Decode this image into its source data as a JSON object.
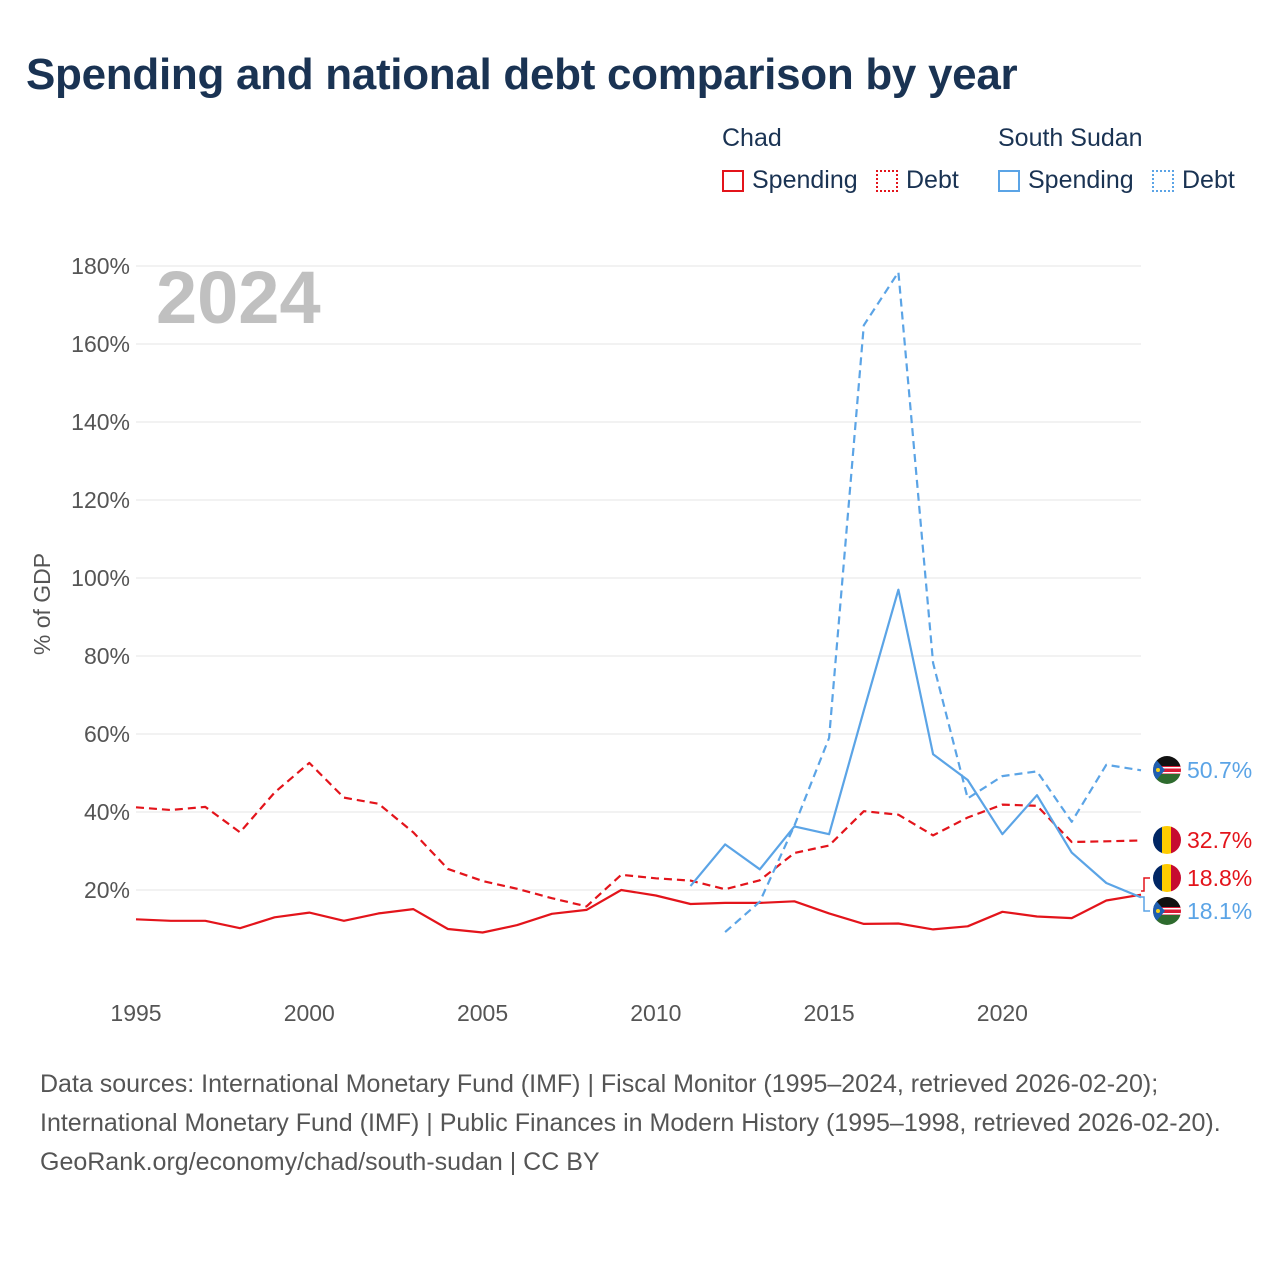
{
  "title": "Spending and national debt comparison by year",
  "colors": {
    "chad": "#e3141b",
    "south_sudan": "#5ba4e6",
    "title": "#1a3353",
    "year_watermark": "#c0c0c0"
  },
  "legend": {
    "groups": [
      {
        "name": "Chad",
        "items": [
          {
            "label": "Spending",
            "style": "solid"
          },
          {
            "label": "Debt",
            "style": "dotted"
          }
        ]
      },
      {
        "name": "South Sudan",
        "items": [
          {
            "label": "Spending",
            "style": "solid"
          },
          {
            "label": "Debt",
            "style": "dotted"
          }
        ]
      }
    ]
  },
  "chart_data": {
    "type": "line",
    "year_label": "2024",
    "ylabel": "% of GDP",
    "xlabel": "",
    "xlim": [
      1995,
      2024
    ],
    "ylim": [
      0,
      180
    ],
    "y_ticks": [
      20,
      40,
      60,
      80,
      100,
      120,
      140,
      160,
      180
    ],
    "y_tick_labels": [
      "20%",
      "40%",
      "60%",
      "80%",
      "100%",
      "120%",
      "140%",
      "160%",
      "180%"
    ],
    "x_ticks": [
      1995,
      2000,
      2005,
      2010,
      2015,
      2020
    ],
    "x_tick_labels": [
      "1995",
      "2000",
      "2005",
      "2010",
      "2015",
      "2020"
    ],
    "grid": true,
    "series": [
      {
        "name": "Chad Spending",
        "country": "chad",
        "style": "solid",
        "x": [
          1995,
          1996,
          1997,
          1998,
          1999,
          2000,
          2001,
          2002,
          2003,
          2004,
          2005,
          2006,
          2007,
          2008,
          2009,
          2010,
          2011,
          2012,
          2013,
          2014,
          2015,
          2016,
          2017,
          2018,
          2019,
          2020,
          2021,
          2022,
          2023,
          2024
        ],
        "values": [
          12.5,
          12.1,
          12.1,
          10.2,
          13,
          14.2,
          12.1,
          14,
          15.1,
          10,
          9.1,
          11,
          13.9,
          14.9,
          20,
          18.6,
          16.4,
          16.7,
          16.7,
          17.1,
          14,
          11.3,
          11.4,
          9.9,
          10.7,
          14.4,
          13.2,
          12.8,
          17.3,
          18.8
        ],
        "end_label": "18.8%"
      },
      {
        "name": "Chad Debt",
        "country": "chad",
        "style": "dashed",
        "x": [
          1995,
          1996,
          1997,
          1998,
          1999,
          2000,
          2001,
          2002,
          2003,
          2004,
          2005,
          2006,
          2007,
          2008,
          2009,
          2010,
          2011,
          2012,
          2013,
          2014,
          2015,
          2016,
          2017,
          2018,
          2019,
          2020,
          2021,
          2022,
          2023,
          2024
        ],
        "values": [
          41.2,
          40.5,
          41.3,
          34.8,
          45,
          52.6,
          43.7,
          42.1,
          34.8,
          25.4,
          22.3,
          20.3,
          17.9,
          15.8,
          23.9,
          23,
          22.4,
          20.2,
          22.5,
          29.5,
          31.4,
          40.2,
          39.3,
          34,
          38.6,
          41.9,
          41.6,
          32.3,
          32.5,
          32.7
        ],
        "end_label": "32.7%"
      },
      {
        "name": "South Sudan Spending",
        "country": "south_sudan",
        "style": "solid",
        "x": [
          2011,
          2012,
          2013,
          2014,
          2015,
          2016,
          2017,
          2018,
          2019,
          2020,
          2021,
          2022,
          2023,
          2024
        ],
        "values": [
          21,
          31.7,
          25.3,
          36.3,
          34.3,
          66,
          97,
          54.8,
          48.2,
          34.3,
          44.3,
          29.6,
          21.8,
          18.1
        ],
        "end_label": "18.1%"
      },
      {
        "name": "South Sudan Debt",
        "country": "south_sudan",
        "style": "dashed",
        "x": [
          2012,
          2013,
          2014,
          2015,
          2016,
          2017,
          2018,
          2019,
          2020,
          2021,
          2022,
          2023,
          2024
        ],
        "values": [
          9.2,
          17,
          36.5,
          59,
          164.8,
          178.4,
          78.2,
          43.5,
          49.2,
          50.4,
          37.5,
          52.1,
          50.7
        ],
        "end_label": "50.7%"
      }
    ]
  },
  "footer": {
    "sources": "Data sources: International Monetary Fund (IMF) | Fiscal Monitor (1995–2024, retrieved 2026-02-20); International Monetary Fund (IMF) | Public Finances in Modern History (1995–1998, retrieved 2026-02-20).",
    "credit": "GeoRank.org/economy/chad/south-sudan | CC BY"
  }
}
